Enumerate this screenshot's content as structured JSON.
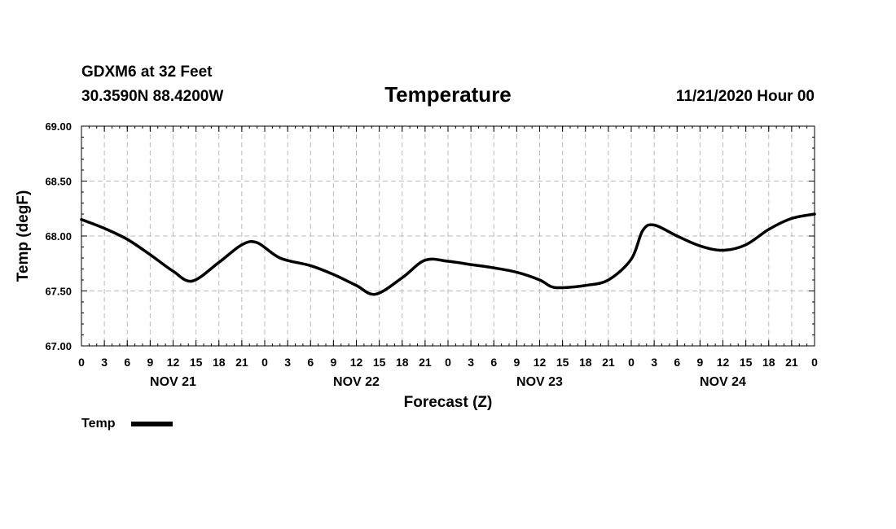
{
  "header": {
    "station": "GDXM6 at 32 Feet",
    "location": "30.3590N 88.4200W",
    "title": "Temperature",
    "datetime": "11/21/2020 Hour 00"
  },
  "chart_data": {
    "type": "line",
    "title": "Temperature",
    "xlabel": "Forecast (Z)",
    "ylabel": "Temp (degF)",
    "ylim": [
      67.0,
      69.0
    ],
    "xlim_hours": [
      0,
      96
    ],
    "x_tick_step_hours": 3,
    "x_tick_labels": [
      "0",
      "3",
      "6",
      "9",
      "12",
      "15",
      "18",
      "21",
      "0",
      "3",
      "6",
      "9",
      "12",
      "15",
      "18",
      "21",
      "0",
      "3",
      "6",
      "9",
      "12",
      "15",
      "18",
      "21",
      "0",
      "3",
      "6",
      "9",
      "12",
      "15",
      "18",
      "21",
      "0"
    ],
    "y_tick_labels": [
      "69.00",
      "68.50",
      "68.00",
      "67.50",
      "67.00"
    ],
    "day_labels": [
      {
        "label": "NOV 21",
        "center_hour": 12
      },
      {
        "label": "NOV 22",
        "center_hour": 36
      },
      {
        "label": "NOV 23",
        "center_hour": 60
      },
      {
        "label": "NOV 24",
        "center_hour": 84
      }
    ],
    "grid": true,
    "legend_position": "bottom-left",
    "series": [
      {
        "name": "Temp",
        "color": "#000000",
        "x_hours": [
          0,
          3,
          6,
          9,
          12,
          14.5,
          18,
          21,
          23,
          26,
          30,
          33,
          36,
          38.5,
          42,
          45,
          48,
          51,
          54,
          57,
          60,
          61.5,
          63,
          66,
          69,
          72,
          73.5,
          75,
          78,
          81,
          84,
          87,
          90,
          93,
          96
        ],
        "values": [
          68.15,
          68.07,
          67.97,
          67.83,
          67.68,
          67.59,
          67.76,
          67.92,
          67.94,
          67.8,
          67.73,
          67.65,
          67.55,
          67.47,
          67.62,
          67.78,
          67.77,
          67.74,
          67.71,
          67.67,
          67.6,
          67.54,
          67.53,
          67.55,
          67.6,
          67.79,
          68.05,
          68.1,
          68.0,
          67.91,
          67.87,
          67.92,
          68.06,
          68.16,
          68.2
        ]
      }
    ]
  }
}
